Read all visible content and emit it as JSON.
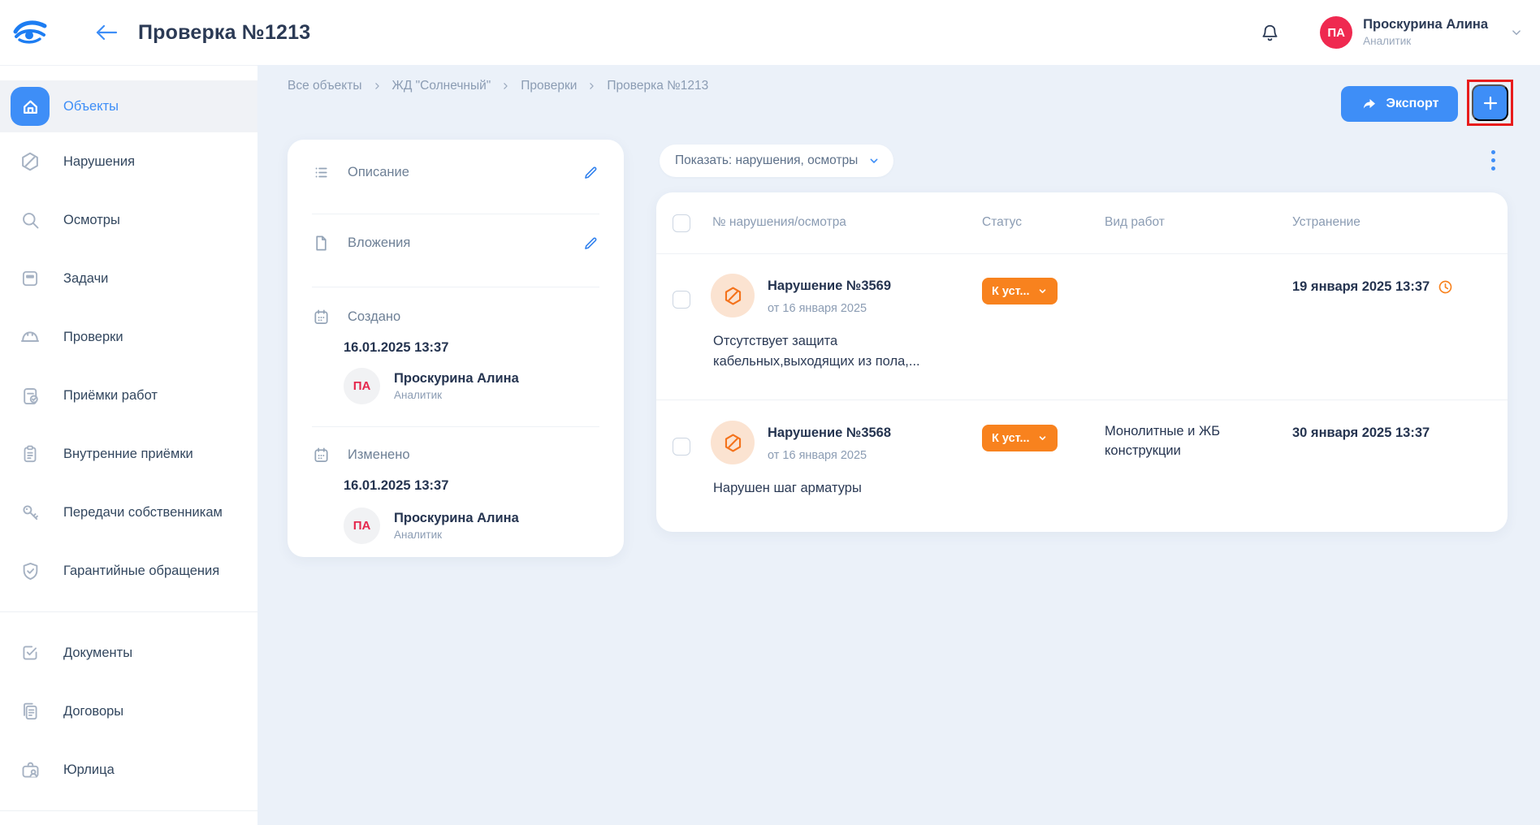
{
  "colors": {
    "accent": "#3e8ef7",
    "status_orange": "#f8821e",
    "row_avatar_bg": "#fbe3d1",
    "header_avatar_bg": "#ef2950",
    "red_highlight_border": "#e81c1c",
    "main_background": "#ebf1f9"
  },
  "header": {
    "title": "Проверка №1213",
    "user": {
      "initials": "ПА",
      "name": "Проскурина Алина",
      "role": "Аналитик"
    }
  },
  "sidebar": {
    "groups": [
      {
        "items": [
          {
            "label": "Объекты",
            "icon": "home-icon",
            "active": true
          },
          {
            "label": "Нарушения",
            "icon": "ban-icon",
            "active": false
          },
          {
            "label": "Осмотры",
            "icon": "search-icon",
            "active": false
          },
          {
            "label": "Задачи",
            "icon": "task-icon",
            "active": false
          },
          {
            "label": "Проверки",
            "icon": "hardhat-icon",
            "active": false
          },
          {
            "label": "Приёмки работ",
            "icon": "clipboard-check-icon",
            "active": false
          },
          {
            "label": "Внутренние приёмки",
            "icon": "clipboard-list-icon",
            "active": false
          },
          {
            "label": "Передачи собственникам",
            "icon": "key-icon",
            "active": false
          },
          {
            "label": "Гарантийные обращения",
            "icon": "shield-check-icon",
            "active": false
          }
        ]
      },
      {
        "items": [
          {
            "label": "Документы",
            "icon": "doc-check-icon",
            "active": false
          },
          {
            "label": "Договоры",
            "icon": "contracts-icon",
            "active": false
          },
          {
            "label": "Юрлица",
            "icon": "briefcase-icon",
            "active": false
          }
        ]
      }
    ]
  },
  "breadcrumb": [
    "Все объекты",
    "ЖД \"Солнечный\"",
    "Проверки",
    "Проверка №1213"
  ],
  "toolbar": {
    "export_label": "Экспорт",
    "add_label": "+"
  },
  "details_card": {
    "description_label": "Описание",
    "attachments_label": "Вложения",
    "created_label": "Создано",
    "created_date": "16.01.2025 13:37",
    "created_user": {
      "initials": "ПА",
      "name": "Проскурина Алина",
      "role": "Аналитик"
    },
    "modified_label": "Изменено",
    "modified_date": "16.01.2025 13:37",
    "modified_user": {
      "initials": "ПА",
      "name": "Проскурина Алина",
      "role": "Аналитик"
    }
  },
  "filter": {
    "label": "Показать: нарушения, осмотры"
  },
  "table": {
    "columns": [
      "№ нарушения/осмотра",
      "Статус",
      "Вид работ",
      "Устранение"
    ],
    "rows": [
      {
        "title": "Нарушение №3569",
        "subtitle": "от 16 января 2025",
        "status": "К уст...",
        "work_type": "",
        "resolution": "19 января 2025 13:37",
        "overdue_clock": true,
        "description": "Отсутствует защита кабельных,выходящих из пола,..."
      },
      {
        "title": "Нарушение №3568",
        "subtitle": "от 16 января 2025",
        "status": "К уст...",
        "work_type": "Монолитные и ЖБ конструкции",
        "resolution": "30 января 2025 13:37",
        "overdue_clock": false,
        "description": "Нарушен шаг арматуры"
      }
    ]
  }
}
